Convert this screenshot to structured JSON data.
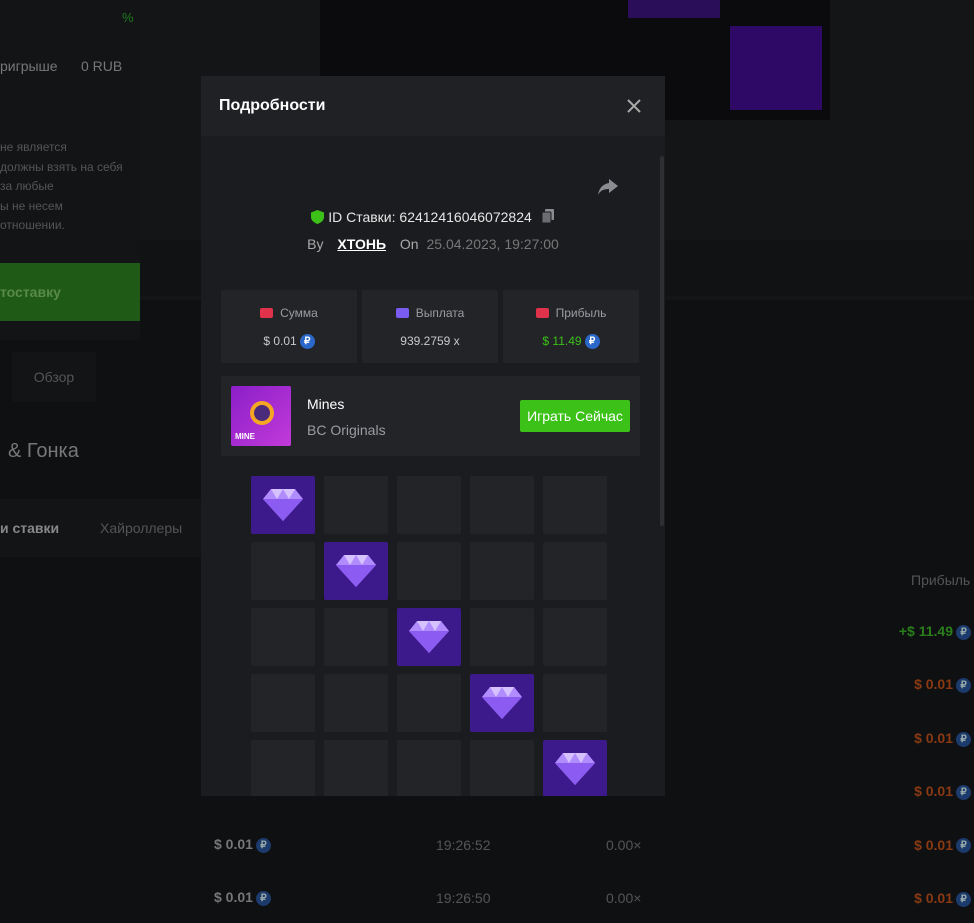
{
  "background": {
    "sidebar": {
      "percent": "%",
      "win_label": "ригрыше",
      "win_value": "0 RUB",
      "disclaimer": [
        "не является",
        "должны взять на себя",
        "за любые",
        "ы не несем",
        "отношении."
      ],
      "autobet_button": "тоставку"
    },
    "overview_tab": "Обзор",
    "section_title": "& Гонка",
    "bet_tabs": [
      "и ставки",
      "Хайроллеры"
    ],
    "table": {
      "profit_header": "Прибыль",
      "profits": [
        "+$ 11.49",
        "$ 0.01",
        "$ 0.01",
        "$ 0.01",
        "$ 0.01",
        "$ 0.01"
      ],
      "rows": [
        [
          "$ 0.01",
          "19:26:52",
          "0.00×"
        ],
        [
          "$ 0.01",
          "19:26:50",
          "0.00×"
        ]
      ]
    }
  },
  "currency_icon": "₽",
  "modal": {
    "title": "Подробности",
    "bet_id": "ID Ставки: 62412416046072824",
    "by_label": "By",
    "user": "ХТОНЬ",
    "on_label": "On",
    "date": "25.04.2023, 19:27:00",
    "stats": [
      {
        "label": "Сумма",
        "value": "$ 0.01"
      },
      {
        "label": "Выплата",
        "value": "939.2759 x"
      },
      {
        "label": "Прибыль",
        "value": "$ 11.49"
      }
    ],
    "game": {
      "icon_text": "MINE",
      "name": "Mines",
      "provider": "BC Originals",
      "play_button": "Играть Сейчас"
    },
    "board": [
      [
        1,
        0,
        0,
        0,
        0
      ],
      [
        0,
        1,
        0,
        0,
        0
      ],
      [
        0,
        0,
        1,
        0,
        0
      ],
      [
        0,
        0,
        0,
        1,
        0
      ],
      [
        0,
        0,
        0,
        0,
        1
      ]
    ]
  }
}
